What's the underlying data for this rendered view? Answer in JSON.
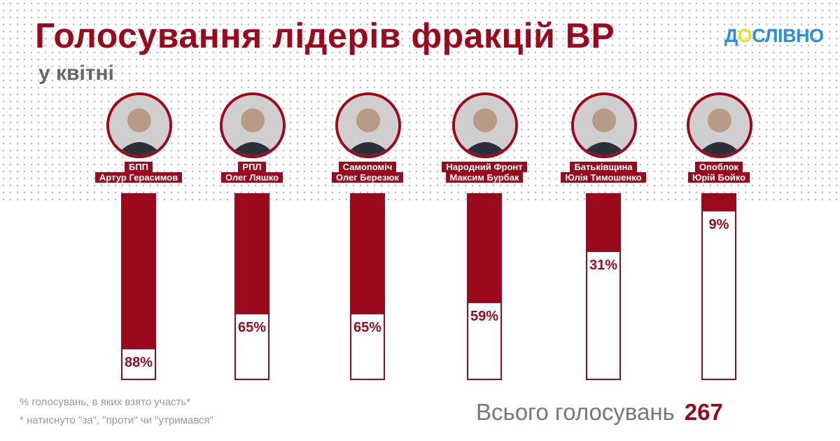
{
  "title": "Голосування лідерів фракцій ВР",
  "subtitle": "у квітні",
  "logo": {
    "pre": "Д",
    "o": "О",
    "post": "СЛІВНО"
  },
  "colors": {
    "accent": "#9b0a1c"
  },
  "chart_data": {
    "type": "bar",
    "title": "Голосування лідерів фракцій ВР",
    "subtitle": "у квітні",
    "ylim": [
      0,
      100
    ],
    "categories": [
      {
        "party": "БПП",
        "name": "Артур Герасимов"
      },
      {
        "party": "РПЛ",
        "name": "Олег Ляшко"
      },
      {
        "party": "Самопоміч",
        "name": "Олег Березюк"
      },
      {
        "party": "Народний Фронт",
        "name": "Максим Бурбак"
      },
      {
        "party": "Батьківщина",
        "name": "Юлія Тимошенко"
      },
      {
        "party": "Опоблок",
        "name": "Юрій Бойко"
      }
    ],
    "values": [
      88,
      65,
      65,
      59,
      31,
      9
    ],
    "labels": [
      "88%",
      "65%",
      "65%",
      "59%",
      "31%",
      "9%"
    ]
  },
  "notes": [
    "% голосувань, в яких взято участь*",
    "* натиснуто \"за\", \"проти\" чи \"утримався\""
  ],
  "total": {
    "label": "Всього голосувань",
    "value": "267"
  }
}
